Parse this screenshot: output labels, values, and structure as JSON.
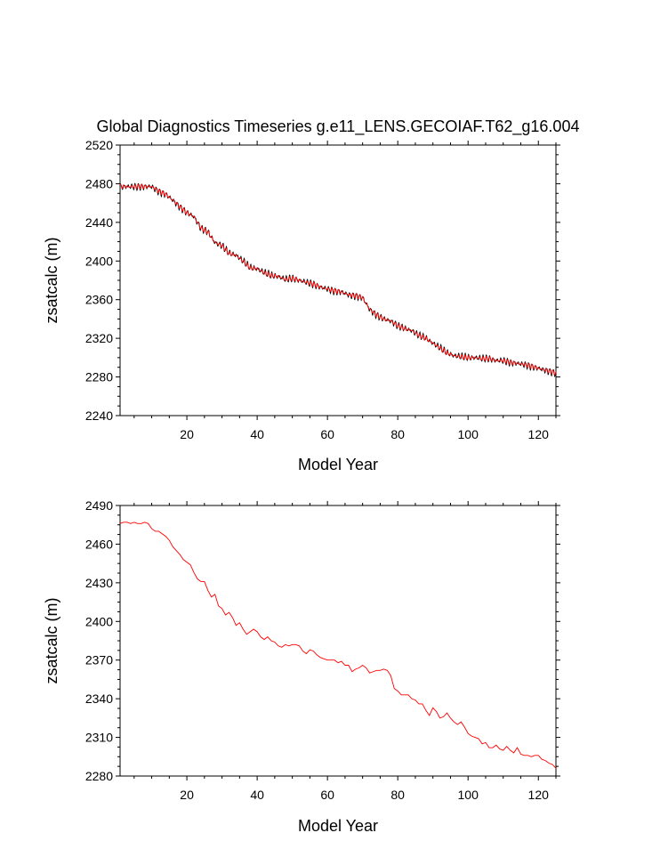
{
  "chart_data": [
    {
      "type": "line",
      "title": "Global Diagnostics Timeseries g.e11_LENS.GECOIAF.T62_g16.004",
      "xlabel": "Model Year",
      "ylabel": "zsatcalc (m)",
      "xlim": [
        1,
        125
      ],
      "ylim": [
        2240,
        2520
      ],
      "xticks": [
        20,
        40,
        60,
        80,
        100,
        120
      ],
      "yticks": [
        2240,
        2280,
        2320,
        2360,
        2400,
        2440,
        2480,
        2520
      ],
      "grid": false,
      "series": [
        {
          "color": "#000000",
          "style": "monthly",
          "x": [
            1,
            6,
            10,
            12,
            14,
            16,
            18,
            20,
            22,
            24,
            26,
            28,
            30,
            32,
            34,
            36,
            38,
            40,
            42,
            44,
            46,
            48,
            50,
            52,
            54,
            56,
            58,
            60,
            62,
            64,
            66,
            68,
            70,
            72,
            74,
            76,
            78,
            80,
            82,
            84,
            86,
            88,
            90,
            92,
            94,
            96,
            98,
            100,
            102,
            104,
            106,
            108,
            110,
            112,
            114,
            116,
            118,
            120,
            122,
            124,
            125
          ],
          "y": [
            2477,
            2477,
            2477,
            2472,
            2469,
            2463,
            2456,
            2450,
            2446,
            2434,
            2430,
            2419,
            2416,
            2408,
            2406,
            2400,
            2393,
            2392,
            2388,
            2385,
            2384,
            2381,
            2382,
            2380,
            2378,
            2376,
            2373,
            2371,
            2369,
            2368,
            2365,
            2364,
            2362,
            2350,
            2344,
            2340,
            2338,
            2333,
            2330,
            2328,
            2323,
            2320,
            2315,
            2310,
            2305,
            2302,
            2301,
            2300,
            2300,
            2299,
            2299,
            2297,
            2297,
            2295,
            2294,
            2293,
            2291,
            2289,
            2287,
            2285,
            2284
          ]
        },
        {
          "color": "#ff0000",
          "style": "annual",
          "x": [
            1,
            6,
            10,
            12,
            14,
            16,
            18,
            20,
            22,
            24,
            26,
            28,
            30,
            32,
            34,
            36,
            38,
            40,
            42,
            44,
            46,
            48,
            50,
            52,
            54,
            56,
            58,
            60,
            62,
            64,
            66,
            68,
            70,
            72,
            74,
            76,
            78,
            80,
            82,
            84,
            86,
            88,
            90,
            92,
            94,
            96,
            98,
            100,
            102,
            104,
            106,
            108,
            110,
            112,
            114,
            116,
            118,
            120,
            122,
            124,
            125
          ],
          "y": [
            2477,
            2477,
            2477,
            2472,
            2469,
            2463,
            2456,
            2450,
            2446,
            2434,
            2430,
            2419,
            2416,
            2408,
            2406,
            2400,
            2393,
            2392,
            2388,
            2385,
            2384,
            2381,
            2382,
            2380,
            2378,
            2376,
            2373,
            2371,
            2369,
            2368,
            2365,
            2364,
            2362,
            2350,
            2344,
            2340,
            2338,
            2333,
            2330,
            2328,
            2323,
            2320,
            2315,
            2310,
            2305,
            2302,
            2301,
            2300,
            2300,
            2299,
            2299,
            2297,
            2297,
            2295,
            2294,
            2293,
            2291,
            2289,
            2287,
            2285,
            2284
          ]
        }
      ]
    },
    {
      "type": "line",
      "title": "",
      "xlabel": "Model Year",
      "ylabel": "zsatcalc (m)",
      "xlim": [
        1,
        125
      ],
      "ylim": [
        2280,
        2490
      ],
      "xticks": [
        20,
        40,
        60,
        80,
        100,
        120
      ],
      "yticks": [
        2280,
        2310,
        2340,
        2370,
        2400,
        2430,
        2460,
        2490
      ],
      "grid": false,
      "series": [
        {
          "color": "#ff0000",
          "x": [
            1,
            2,
            3,
            4,
            5,
            6,
            7,
            8,
            9,
            10,
            11,
            12,
            13,
            14,
            15,
            16,
            17,
            18,
            19,
            20,
            21,
            22,
            23,
            24,
            25,
            26,
            27,
            28,
            29,
            30,
            31,
            32,
            33,
            34,
            35,
            36,
            37,
            38,
            39,
            40,
            41,
            42,
            43,
            44,
            45,
            46,
            47,
            48,
            49,
            50,
            51,
            52,
            53,
            54,
            55,
            56,
            57,
            58,
            59,
            60,
            61,
            62,
            63,
            64,
            65,
            66,
            67,
            68,
            69,
            70,
            71,
            72,
            73,
            74,
            75,
            76,
            77,
            78,
            79,
            80,
            81,
            82,
            83,
            84,
            85,
            86,
            87,
            88,
            89,
            90,
            91,
            92,
            93,
            94,
            95,
            96,
            97,
            98,
            99,
            100,
            101,
            102,
            103,
            104,
            105,
            106,
            107,
            108,
            109,
            110,
            111,
            112,
            113,
            114,
            115,
            116,
            117,
            118,
            119,
            120,
            121,
            122,
            123,
            124,
            125
          ],
          "y": [
            2476,
            2477,
            2477,
            2476,
            2477,
            2476,
            2476,
            2477,
            2476,
            2472,
            2470,
            2470,
            2468,
            2466,
            2463,
            2458,
            2455,
            2452,
            2448,
            2446,
            2444,
            2438,
            2433,
            2431,
            2431,
            2424,
            2419,
            2421,
            2412,
            2410,
            2405,
            2407,
            2403,
            2397,
            2399,
            2394,
            2390,
            2392,
            2394,
            2392,
            2388,
            2386,
            2388,
            2385,
            2384,
            2381,
            2380,
            2382,
            2381,
            2382,
            2382,
            2381,
            2377,
            2375,
            2378,
            2377,
            2374,
            2372,
            2371,
            2370,
            2370,
            2370,
            2368,
            2369,
            2366,
            2366,
            2361,
            2363,
            2364,
            2366,
            2364,
            2360,
            2361,
            2362,
            2362,
            2363,
            2362,
            2358,
            2348,
            2346,
            2343,
            2343,
            2343,
            2340,
            2339,
            2336,
            2336,
            2331,
            2327,
            2333,
            2330,
            2325,
            2326,
            2329,
            2325,
            2322,
            2320,
            2322,
            2318,
            2313,
            2311,
            2310,
            2309,
            2305,
            2306,
            2302,
            2302,
            2304,
            2301,
            2300,
            2303,
            2300,
            2298,
            2302,
            2297,
            2296,
            2296,
            2295,
            2296,
            2296,
            2293,
            2292,
            2290,
            2289,
            2286
          ]
        }
      ]
    }
  ]
}
